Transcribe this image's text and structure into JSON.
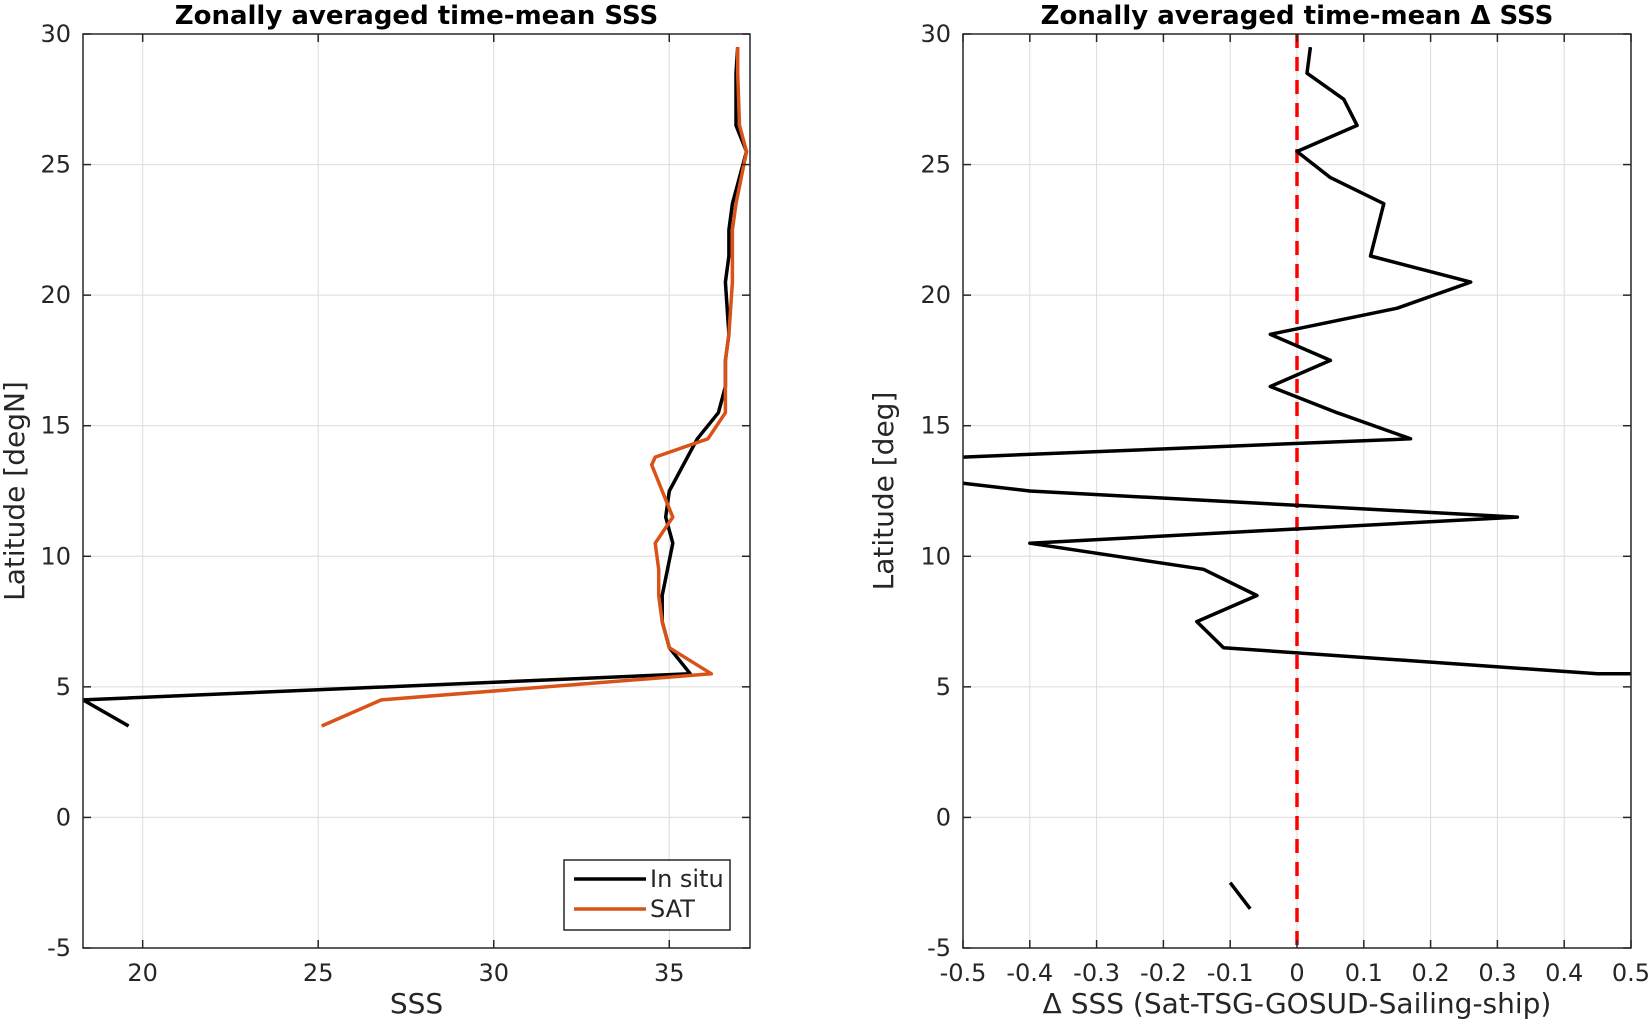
{
  "chart_data": [
    {
      "type": "line",
      "title": "Zonally averaged time-mean SSS",
      "xlabel": "SSS",
      "ylabel": "Latitude [degN]",
      "xlim": [
        18.3,
        37.3
      ],
      "ylim": [
        -5,
        30
      ],
      "xticks": [
        20,
        25,
        30,
        35
      ],
      "yticks": [
        -5,
        0,
        5,
        10,
        15,
        20,
        25,
        30
      ],
      "grid": true,
      "legend_position": "bottom-right",
      "series": [
        {
          "name": "In situ",
          "color": "#000000",
          "x": [
            19.6,
            18.3,
            35.6,
            35.0,
            34.8,
            34.8,
            35.1,
            34.9,
            35.0,
            35.8,
            36.4,
            36.6,
            36.6,
            36.7,
            36.6,
            36.7,
            36.7,
            36.8,
            37.2,
            36.9,
            36.9,
            36.95
          ],
          "y": [
            3.5,
            4.5,
            5.5,
            6.5,
            7.5,
            8.5,
            10.5,
            11.5,
            12.5,
            14.5,
            15.5,
            16.5,
            17.5,
            18.5,
            20.5,
            21.5,
            22.5,
            23.5,
            25.5,
            26.5,
            28.5,
            29.5
          ]
        },
        {
          "name": "SAT",
          "color": "#D95319",
          "x": [
            25.1,
            26.8,
            36.2,
            35.0,
            34.8,
            34.7,
            34.7,
            34.6,
            35.1,
            34.8,
            34.5,
            34.6,
            36.1,
            36.6,
            36.6,
            36.6,
            36.7,
            36.8,
            36.8,
            36.9,
            37.2,
            37.0,
            36.95,
            36.95
          ],
          "y": [
            3.5,
            4.5,
            5.5,
            6.5,
            7.5,
            8.5,
            9.5,
            10.5,
            11.5,
            12.5,
            13.5,
            13.8,
            14.5,
            15.5,
            16.5,
            17.5,
            18.5,
            20.5,
            22.5,
            23.5,
            25.5,
            26.5,
            28.5,
            29.5
          ]
        }
      ]
    },
    {
      "type": "line",
      "title": "Zonally averaged time-mean Δ SSS",
      "xlabel": "Δ SSS (Sat-TSG-GOSUD-Sailing-ship)",
      "ylabel": "Latitude [deg]",
      "xlim": [
        -0.5,
        0.5
      ],
      "ylim": [
        -5,
        30
      ],
      "xticks": [
        -0.5,
        -0.4,
        -0.3,
        -0.2,
        -0.1,
        0,
        0.1,
        0.2,
        0.3,
        0.4,
        0.5
      ],
      "yticks": [
        -5,
        0,
        5,
        10,
        15,
        20,
        25,
        30
      ],
      "grid": true,
      "reference_line": {
        "x": 0,
        "color": "#FF0000",
        "style": "dashed"
      },
      "series": [
        {
          "name": "",
          "color": "#000000",
          "x": [
            0.5,
            0.45,
            -0.11,
            -0.15,
            -0.06,
            -0.14,
            -0.4,
            0.33,
            -0.4,
            -0.5
          ],
          "y": [
            5.5,
            5.5,
            6.5,
            7.5,
            8.5,
            9.5,
            10.5,
            11.5,
            12.5,
            12.8
          ]
        },
        {
          "name": "",
          "color": "#000000",
          "x": [
            -0.5,
            0.17,
            0.06,
            -0.04,
            0.05,
            -0.04,
            0.15,
            0.26,
            0.11,
            0.13,
            0.05,
            0.0,
            0.09,
            0.07,
            0.015,
            0.02
          ],
          "y": [
            13.8,
            14.5,
            15.5,
            16.5,
            17.5,
            18.5,
            19.5,
            20.5,
            21.5,
            23.5,
            24.5,
            25.5,
            26.5,
            27.5,
            28.5,
            29.5
          ]
        },
        {
          "name": "",
          "color": "#000000",
          "x": [
            -0.1,
            -0.07
          ],
          "y": [
            -2.5,
            -3.5
          ]
        }
      ]
    }
  ]
}
